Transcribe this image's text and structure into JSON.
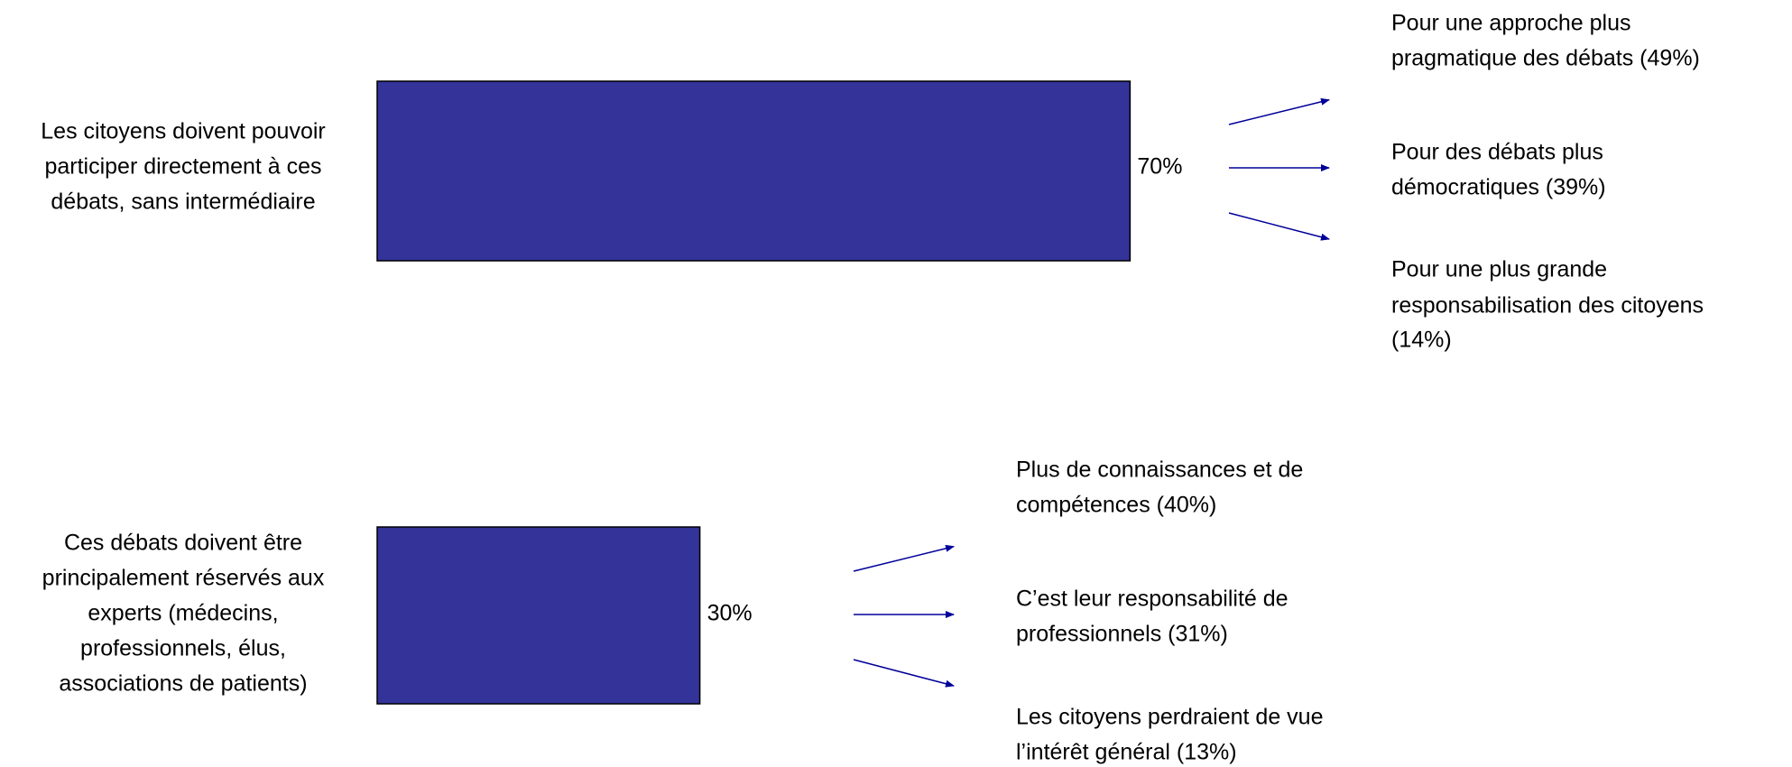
{
  "chart_data": {
    "type": "bar",
    "orientation": "horizontal",
    "categories": [
      [
        "Les citoyens doivent pouvoir",
        "participer directement à ces",
        "débats, sans intermédiaire"
      ],
      [
        "Ces débats doivent être",
        "principalement réservés aux",
        "experts (médecins,",
        "professionnels, élus,",
        "associations de patients)"
      ]
    ],
    "values": [
      70,
      30
    ],
    "value_labels": [
      "70%",
      "30%"
    ],
    "color": "#333399",
    "xlim": [
      0,
      100
    ],
    "reasons": [
      [
        [
          "Pour une approche plus",
          "pragmatique des débats (49%)"
        ],
        [
          "Pour des débats plus",
          "démocratiques (39%)"
        ],
        [
          "Pour une plus grande",
          "responsabilisation des citoyens",
          "(14%)"
        ]
      ],
      [
        [
          "Plus de connaissances et de",
          "compétences (40%)"
        ],
        [
          "C’est leur responsabilité de",
          "professionnels (31%)"
        ],
        [
          "Les citoyens perdraient de vue",
          "l’intérêt général (13%)"
        ]
      ]
    ],
    "arrow_color": "#000099"
  }
}
